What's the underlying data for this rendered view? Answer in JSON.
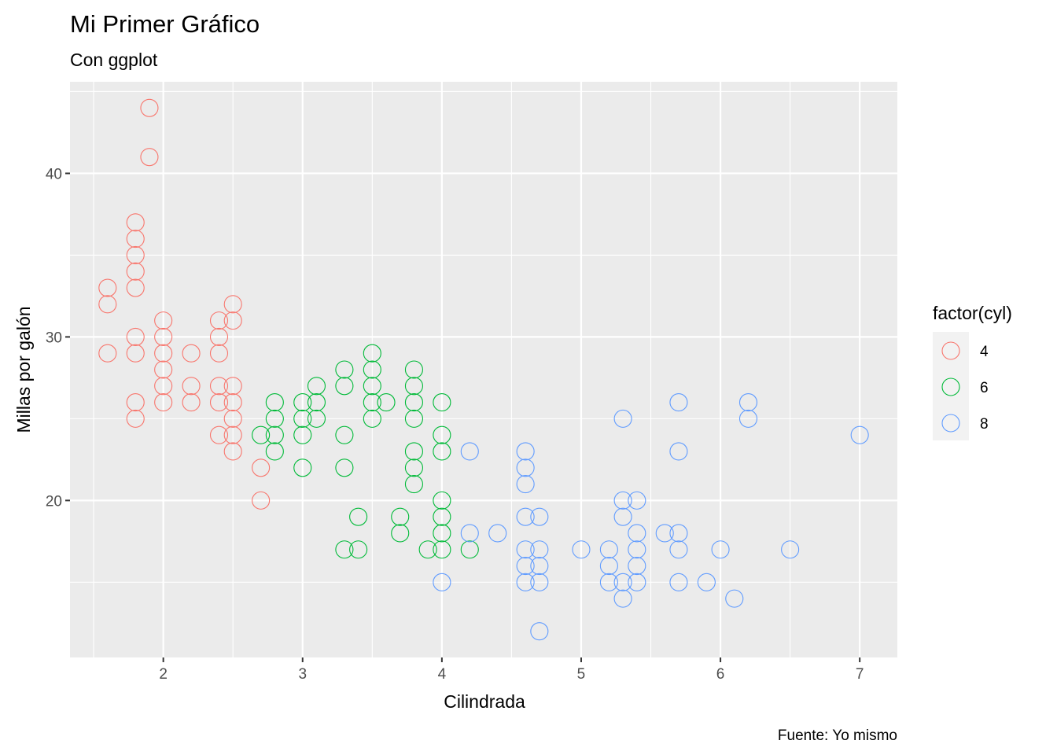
{
  "chart_data": {
    "type": "scatter",
    "title": "Mi Primer Gráfico",
    "subtitle": "Con ggplot",
    "xlabel": "Cilindrada",
    "ylabel": "Millas por galón",
    "caption": "Fuente: Yo mismo",
    "xlim": [
      1.33,
      7.27
    ],
    "ylim": [
      10.4,
      45.6
    ],
    "x_ticks": [
      2,
      3,
      4,
      5,
      6,
      7
    ],
    "y_ticks": [
      20,
      30,
      40
    ],
    "grid": true,
    "legend": {
      "title": "factor(cyl)",
      "position": "right"
    },
    "series": [
      {
        "name": "4",
        "color": "#F8766D",
        "points": [
          [
            1.6,
            33
          ],
          [
            1.6,
            32
          ],
          [
            1.6,
            29
          ],
          [
            1.8,
            37
          ],
          [
            1.8,
            36
          ],
          [
            1.8,
            35
          ],
          [
            1.8,
            34
          ],
          [
            1.8,
            33
          ],
          [
            1.8,
            30
          ],
          [
            1.8,
            29
          ],
          [
            1.8,
            26
          ],
          [
            1.8,
            25
          ],
          [
            1.9,
            44
          ],
          [
            1.9,
            41
          ],
          [
            2.0,
            31
          ],
          [
            2.0,
            30
          ],
          [
            2.0,
            29
          ],
          [
            2.0,
            28
          ],
          [
            2.0,
            27
          ],
          [
            2.0,
            26
          ],
          [
            2.2,
            29
          ],
          [
            2.2,
            27
          ],
          [
            2.2,
            26
          ],
          [
            2.4,
            31
          ],
          [
            2.4,
            30
          ],
          [
            2.4,
            29
          ],
          [
            2.4,
            27
          ],
          [
            2.4,
            26
          ],
          [
            2.4,
            24
          ],
          [
            2.5,
            32
          ],
          [
            2.5,
            31
          ],
          [
            2.5,
            27
          ],
          [
            2.5,
            26
          ],
          [
            2.5,
            25
          ],
          [
            2.5,
            24
          ],
          [
            2.5,
            23
          ],
          [
            2.7,
            22
          ],
          [
            2.7,
            20
          ]
        ]
      },
      {
        "name": "6",
        "color": "#00BA38",
        "points": [
          [
            2.7,
            24
          ],
          [
            2.8,
            26
          ],
          [
            2.8,
            25
          ],
          [
            2.8,
            24
          ],
          [
            2.8,
            23
          ],
          [
            3.0,
            26
          ],
          [
            3.0,
            25
          ],
          [
            3.0,
            24
          ],
          [
            3.0,
            22
          ],
          [
            3.1,
            27
          ],
          [
            3.1,
            26
          ],
          [
            3.1,
            25
          ],
          [
            3.3,
            28
          ],
          [
            3.3,
            27
          ],
          [
            3.3,
            24
          ],
          [
            3.3,
            22
          ],
          [
            3.3,
            17
          ],
          [
            3.4,
            19
          ],
          [
            3.4,
            17
          ],
          [
            3.5,
            29
          ],
          [
            3.5,
            28
          ],
          [
            3.5,
            27
          ],
          [
            3.5,
            26
          ],
          [
            3.5,
            25
          ],
          [
            3.6,
            26
          ],
          [
            3.7,
            19
          ],
          [
            3.7,
            18
          ],
          [
            3.8,
            28
          ],
          [
            3.8,
            27
          ],
          [
            3.8,
            26
          ],
          [
            3.8,
            25
          ],
          [
            3.8,
            23
          ],
          [
            3.8,
            22
          ],
          [
            3.8,
            21
          ],
          [
            3.9,
            17
          ],
          [
            4.0,
            26
          ],
          [
            4.0,
            24
          ],
          [
            4.0,
            23
          ],
          [
            4.0,
            20
          ],
          [
            4.0,
            19
          ],
          [
            4.0,
            18
          ],
          [
            4.0,
            17
          ],
          [
            4.2,
            17
          ]
        ]
      },
      {
        "name": "8",
        "color": "#619CFF",
        "points": [
          [
            4.0,
            15
          ],
          [
            4.2,
            23
          ],
          [
            4.2,
            18
          ],
          [
            4.4,
            18
          ],
          [
            4.6,
            23
          ],
          [
            4.6,
            22
          ],
          [
            4.6,
            21
          ],
          [
            4.6,
            19
          ],
          [
            4.6,
            17
          ],
          [
            4.6,
            16
          ],
          [
            4.6,
            15
          ],
          [
            4.7,
            19
          ],
          [
            4.7,
            17
          ],
          [
            4.7,
            16
          ],
          [
            4.7,
            15
          ],
          [
            4.7,
            12
          ],
          [
            5.0,
            17
          ],
          [
            5.2,
            17
          ],
          [
            5.2,
            16
          ],
          [
            5.2,
            15
          ],
          [
            5.3,
            25
          ],
          [
            5.3,
            20
          ],
          [
            5.3,
            19
          ],
          [
            5.3,
            15
          ],
          [
            5.3,
            14
          ],
          [
            5.4,
            20
          ],
          [
            5.4,
            18
          ],
          [
            5.4,
            17
          ],
          [
            5.4,
            16
          ],
          [
            5.4,
            15
          ],
          [
            5.6,
            18
          ],
          [
            5.7,
            26
          ],
          [
            5.7,
            23
          ],
          [
            5.7,
            18
          ],
          [
            5.7,
            17
          ],
          [
            5.7,
            15
          ],
          [
            5.9,
            15
          ],
          [
            6.0,
            17
          ],
          [
            6.1,
            14
          ],
          [
            6.2,
            26
          ],
          [
            6.2,
            25
          ],
          [
            6.5,
            17
          ],
          [
            7.0,
            24
          ]
        ]
      }
    ]
  }
}
